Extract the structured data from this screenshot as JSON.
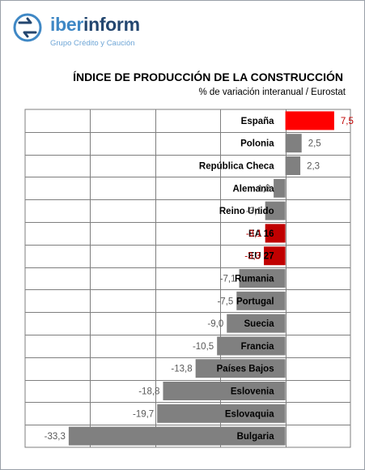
{
  "brand": {
    "name_part1": "iber",
    "name_part2": "inform",
    "tagline": "Grupo Crédito y Caución"
  },
  "colors": {
    "bar_default": "#808080",
    "bar_highlight": "#ff0000",
    "bar_aggregate": "#c00000",
    "value_default": "#595959",
    "value_negative_highlight": "#c00000",
    "brand_blue": "#3f88c5",
    "brand_navy": "#23466f"
  },
  "chart_data": {
    "type": "bar",
    "orientation": "horizontal",
    "title": "ÍNDICE DE PRODUCCIÓN DE LA CONSTRUCCIÓN",
    "subtitle": "% de variación interanual / Eurostat",
    "xlim": [
      -40,
      10
    ],
    "grid": true,
    "legend": "none",
    "categories": [
      "España",
      "Polonia",
      "República Checa",
      "Alemania",
      "Reino Unido",
      "EA 16",
      "EU 27",
      "Rumania",
      "Portugal",
      "Suecia",
      "Francia",
      "Países Bajos",
      "Eslovenia",
      "Eslovaquia",
      "Bulgaria"
    ],
    "values": [
      7.5,
      2.5,
      2.3,
      -1.8,
      -3.1,
      -3.1,
      -3.3,
      -7.1,
      -7.5,
      -9.0,
      -10.5,
      -13.8,
      -18.8,
      -19.7,
      -33.3
    ],
    "value_labels": [
      "7,5",
      "2,5",
      "2,3",
      "-1,8",
      "-3,1",
      "-3,1",
      "-3,3",
      "-7,1",
      "-7,5",
      "-9,0",
      "-10,5",
      "-13,8",
      "-18,8",
      "-19,7",
      "-33,3"
    ],
    "highlight": [
      "highlight",
      "default",
      "default",
      "default",
      "default",
      "aggregate",
      "aggregate",
      "default",
      "default",
      "default",
      "default",
      "default",
      "default",
      "default",
      "default"
    ]
  }
}
